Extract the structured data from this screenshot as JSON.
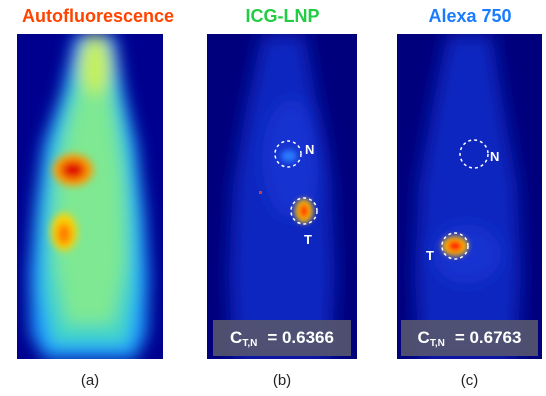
{
  "panels": [
    {
      "title": "Autofluorescence",
      "title_color": "#ff4400",
      "caption": "(a)"
    },
    {
      "title": "ICG-LNP",
      "title_color": "#22cc44",
      "caption": "(b)",
      "labels": {
        "normal": "N",
        "tumor": "T"
      },
      "ratio": {
        "symbol": "C",
        "subscript": "T,N",
        "value": "= 0.6366"
      }
    },
    {
      "title": "Alexa 750",
      "title_color": "#1a7bff",
      "caption": "(c)",
      "labels": {
        "normal": "N",
        "tumor": "T"
      },
      "ratio": {
        "symbol": "C",
        "subscript": "T,N",
        "value": "= 0.6763"
      }
    }
  ],
  "colors": {
    "background": "#00008a",
    "ratio_box": "#55556e"
  }
}
